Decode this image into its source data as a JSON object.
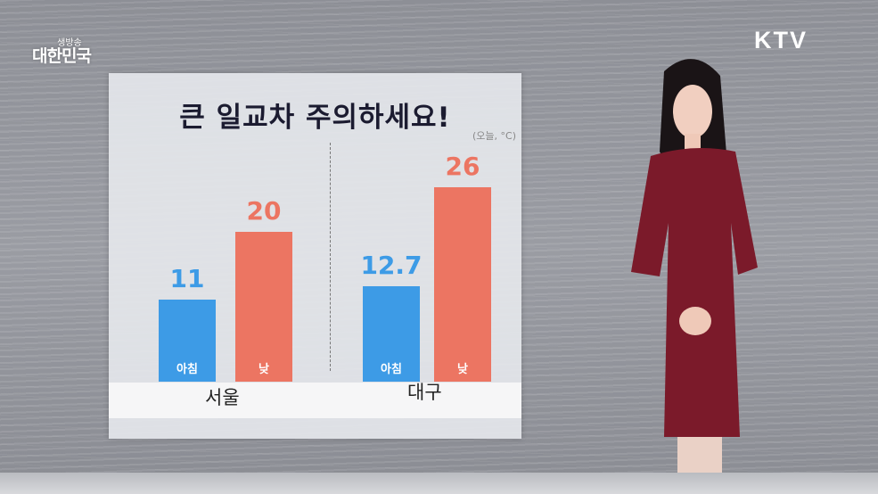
{
  "broadcast": {
    "show_logo_small": "생방송",
    "show_logo_big": "대한민국",
    "channel_logo": "KTV"
  },
  "chart_data": {
    "type": "bar",
    "title": "큰 일교차 주의하세요!",
    "unit_note": "(오늘, °C)",
    "categories": [
      "서울",
      "대구"
    ],
    "series": [
      {
        "name": "아침",
        "values": [
          11,
          12.7
        ],
        "color": "#3d9be6"
      },
      {
        "name": "낮",
        "values": [
          20,
          26
        ],
        "color": "#ec7562"
      }
    ],
    "value_labels": [
      [
        "11",
        "20"
      ],
      [
        "12.7",
        "26"
      ]
    ],
    "ylim": [
      0,
      30
    ],
    "grid": false
  }
}
